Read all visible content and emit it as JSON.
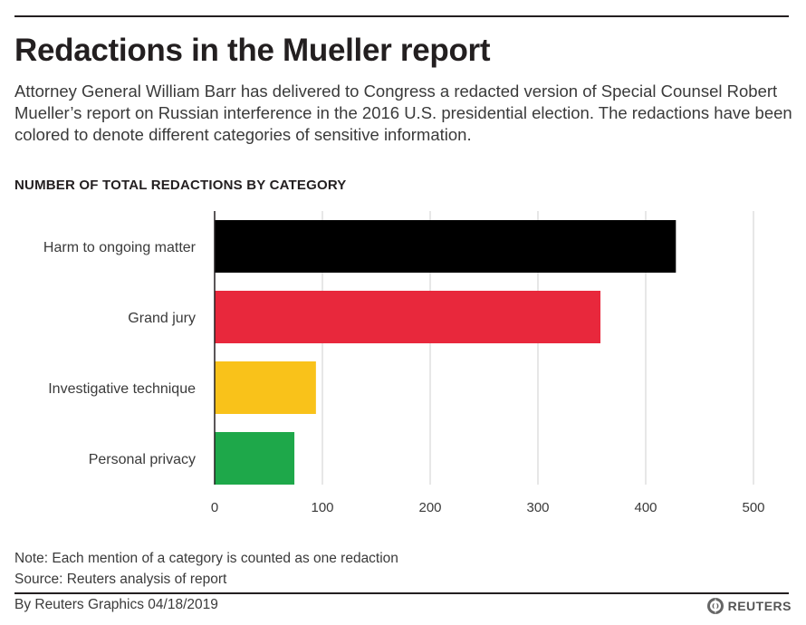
{
  "header": {
    "title": "Redactions in the Mueller report",
    "subtitle": "Attorney General William Barr has delivered to Congress a redacted version of Special Counsel Robert Mueller’s report on Russian interference in the 2016 U.S. presidential election. The redactions have been colored to denote different categories of sensitive information.",
    "chart_heading": "NUMBER OF TOTAL REDACTIONS BY CATEGORY"
  },
  "chart_data": {
    "type": "bar",
    "orientation": "horizontal",
    "title": "NUMBER OF TOTAL REDACTIONS BY CATEGORY",
    "categories": [
      "Harm to ongoing matter",
      "Grand jury",
      "Investigative technique",
      "Personal privacy"
    ],
    "values": [
      428,
      358,
      94,
      74
    ],
    "colors": [
      "#000000",
      "#e8283c",
      "#f9c21a",
      "#1ea84a"
    ],
    "xlim": [
      0,
      500
    ],
    "xticks": [
      "0",
      "100",
      "200",
      "300",
      "400",
      "500"
    ],
    "grid": true,
    "legend": "none"
  },
  "footer": {
    "note": "Note: Each mention of a category is counted as one redaction",
    "source": "Source: Reuters analysis of report",
    "byline": "By Reuters Graphics 04/18/2019",
    "logo_text": "REUTERS"
  }
}
